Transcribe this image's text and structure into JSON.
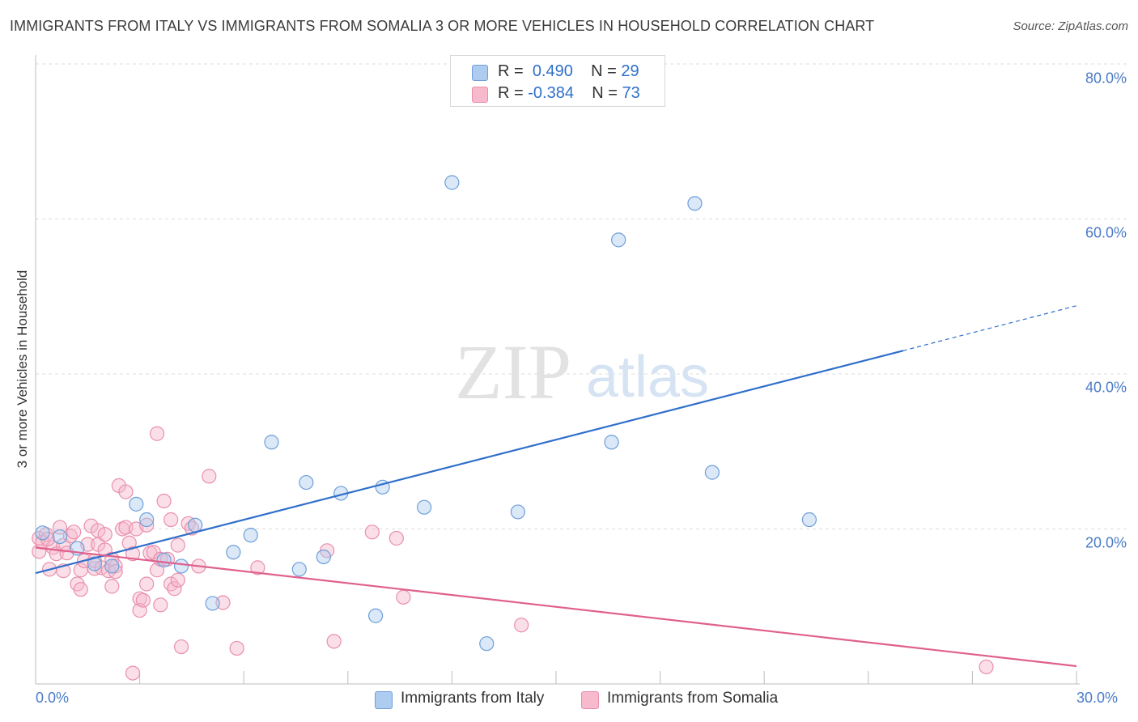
{
  "header": {
    "title": "IMMIGRANTS FROM ITALY VS IMMIGRANTS FROM SOMALIA 3 OR MORE VEHICLES IN HOUSEHOLD CORRELATION CHART",
    "source": "Source: ZipAtlas.com"
  },
  "watermark": {
    "zip": "ZIP",
    "atlas": "atlas"
  },
  "legend": {
    "italy": {
      "r_label": "R =",
      "r_value": "0.490",
      "n_label": "N =",
      "n_value": "29"
    },
    "somalia": {
      "r_label": "R =",
      "r_value": "-0.384",
      "n_label": "N =",
      "n_value": "73"
    }
  },
  "bottom_legend": {
    "italy": "Immigrants from Italy",
    "somalia": "Immigrants from Somalia"
  },
  "colors": {
    "italy_fill": "#aecbf0",
    "italy_stroke": "#6f9fd8",
    "italy_line": "#2f6fca",
    "somalia_fill": "#f7b9cc",
    "somalia_stroke": "#e98fac",
    "somalia_line": "#e0608e",
    "tick_label": "#4a7cc7",
    "grid": "#dcdcdc"
  },
  "chart_data": {
    "type": "scatter",
    "title": "IMMIGRANTS FROM ITALY VS IMMIGRANTS FROM SOMALIA 3 OR MORE VEHICLES IN HOUSEHOLD CORRELATION CHART",
    "xlabel": "",
    "ylabel": "3 or more Vehicles in Household",
    "xlim": [
      0,
      30
    ],
    "ylim": [
      0,
      80
    ],
    "x_tick_labels": [
      "0.0%",
      "30.0%"
    ],
    "y_ticks": [
      20,
      40,
      60,
      80
    ],
    "y_tick_labels": [
      "20.0%",
      "40.0%",
      "60.0%",
      "80.0%"
    ],
    "grid": true,
    "legend_position": "top-center",
    "series": [
      {
        "name": "Immigrants from Italy",
        "r": 0.49,
        "n": 29,
        "trend": {
          "x0": 0,
          "y0": 14.3,
          "x1": 25.0,
          "y1": 43.0,
          "dash_to_x": 30,
          "dash_to_y": 48.8
        },
        "points": [
          [
            0.2,
            19.5
          ],
          [
            0.7,
            19.0
          ],
          [
            1.2,
            17.5
          ],
          [
            1.7,
            15.5
          ],
          [
            2.2,
            15.2
          ],
          [
            2.9,
            23.2
          ],
          [
            3.2,
            21.2
          ],
          [
            3.7,
            16.0
          ],
          [
            4.2,
            15.2
          ],
          [
            4.6,
            20.5
          ],
          [
            5.1,
            10.4
          ],
          [
            5.7,
            17.0
          ],
          [
            6.2,
            19.2
          ],
          [
            6.8,
            31.2
          ],
          [
            7.6,
            14.8
          ],
          [
            7.8,
            26.0
          ],
          [
            8.3,
            16.4
          ],
          [
            8.8,
            24.6
          ],
          [
            9.8,
            8.8
          ],
          [
            10.0,
            25.4
          ],
          [
            11.2,
            22.8
          ],
          [
            12.0,
            64.7
          ],
          [
            13.0,
            5.2
          ],
          [
            13.9,
            22.2
          ],
          [
            16.6,
            31.2
          ],
          [
            16.8,
            57.3
          ],
          [
            19.0,
            62.0
          ],
          [
            19.5,
            27.3
          ],
          [
            22.3,
            21.2
          ]
        ]
      },
      {
        "name": "Immigrants from Somalia",
        "r": -0.384,
        "n": 73,
        "trend": {
          "x0": 0,
          "y0": 17.6,
          "x1": 30,
          "y1": 2.3
        },
        "points": [
          [
            0.1,
            18.8
          ],
          [
            0.1,
            17.1
          ],
          [
            0.2,
            18.3
          ],
          [
            0.3,
            19.3
          ],
          [
            0.4,
            14.8
          ],
          [
            0.5,
            17.6
          ],
          [
            0.6,
            16.8
          ],
          [
            0.7,
            20.2
          ],
          [
            0.8,
            14.6
          ],
          [
            0.8,
            17.9
          ],
          [
            0.9,
            16.9
          ],
          [
            1.0,
            19.1
          ],
          [
            1.1,
            19.6
          ],
          [
            1.2,
            12.9
          ],
          [
            1.3,
            14.7
          ],
          [
            1.3,
            12.2
          ],
          [
            1.4,
            15.9
          ],
          [
            1.5,
            18.0
          ],
          [
            1.6,
            20.4
          ],
          [
            1.7,
            14.9
          ],
          [
            1.7,
            15.9
          ],
          [
            1.8,
            19.8
          ],
          [
            1.8,
            18.0
          ],
          [
            1.9,
            15.0
          ],
          [
            2.0,
            17.3
          ],
          [
            2.0,
            19.3
          ],
          [
            2.1,
            14.6
          ],
          [
            2.2,
            16.1
          ],
          [
            2.2,
            12.6
          ],
          [
            2.3,
            15.2
          ],
          [
            2.3,
            14.5
          ],
          [
            2.4,
            25.6
          ],
          [
            2.5,
            20.0
          ],
          [
            2.6,
            24.8
          ],
          [
            2.6,
            20.2
          ],
          [
            2.7,
            18.2
          ],
          [
            2.8,
            1.4
          ],
          [
            2.8,
            16.8
          ],
          [
            2.9,
            20.0
          ],
          [
            3.0,
            11.0
          ],
          [
            3.0,
            9.5
          ],
          [
            3.1,
            10.8
          ],
          [
            3.2,
            12.9
          ],
          [
            3.2,
            20.5
          ],
          [
            3.3,
            16.9
          ],
          [
            3.4,
            17.0
          ],
          [
            3.5,
            32.3
          ],
          [
            3.5,
            14.7
          ],
          [
            3.6,
            16.1
          ],
          [
            3.6,
            10.2
          ],
          [
            3.7,
            23.6
          ],
          [
            3.8,
            16.1
          ],
          [
            3.9,
            21.2
          ],
          [
            3.9,
            12.9
          ],
          [
            4.0,
            12.3
          ],
          [
            4.1,
            17.9
          ],
          [
            4.1,
            13.4
          ],
          [
            4.2,
            4.8
          ],
          [
            4.4,
            20.7
          ],
          [
            4.5,
            20.1
          ],
          [
            4.7,
            15.2
          ],
          [
            5.0,
            26.8
          ],
          [
            5.4,
            10.5
          ],
          [
            5.8,
            4.6
          ],
          [
            6.4,
            15.0
          ],
          [
            8.4,
            17.2
          ],
          [
            8.6,
            5.5
          ],
          [
            9.7,
            19.6
          ],
          [
            10.4,
            18.8
          ],
          [
            10.6,
            11.2
          ],
          [
            14.0,
            7.6
          ],
          [
            27.4,
            2.2
          ],
          [
            0.35,
            18.7
          ]
        ]
      }
    ]
  }
}
